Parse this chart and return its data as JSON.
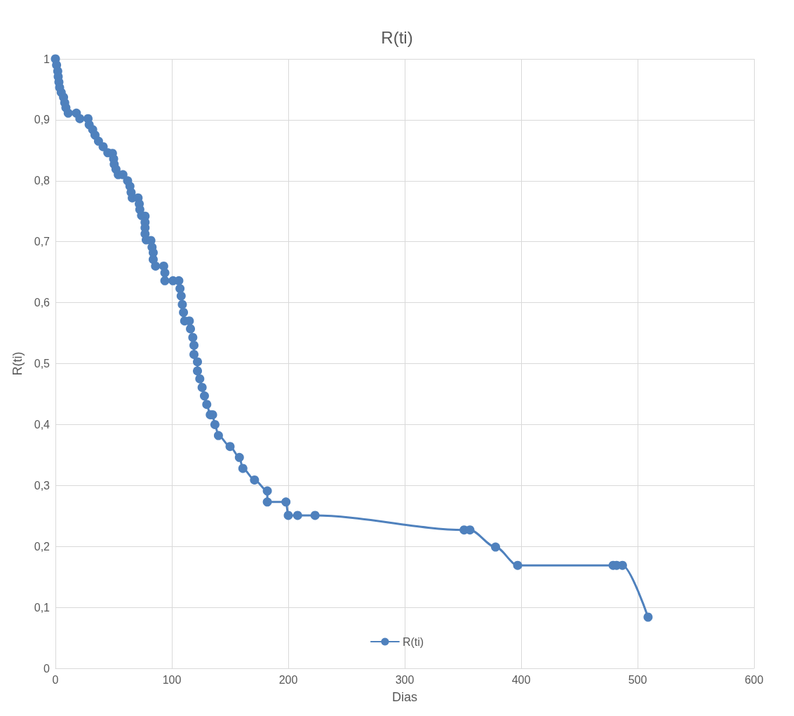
{
  "chart_data": {
    "type": "line",
    "title": "R(ti)",
    "xlabel": "Dias",
    "ylabel": "R(ti)",
    "x": [
      0,
      1,
      2,
      2.4,
      3,
      3.6,
      5,
      7,
      8,
      9,
      11,
      18,
      21,
      28,
      29,
      32,
      34,
      37,
      41,
      45,
      49,
      50,
      50.5,
      52,
      54,
      58,
      62,
      64,
      65,
      66,
      71,
      72,
      72.5,
      74,
      77,
      77,
      77,
      77,
      78,
      82,
      83,
      84,
      84,
      86,
      93,
      94,
      94,
      101,
      106,
      107,
      108,
      109,
      110,
      111,
      115,
      116,
      118,
      119,
      119,
      122,
      122,
      124,
      126,
      128,
      130,
      133,
      135,
      137,
      140,
      150,
      158,
      161,
      171,
      182,
      182,
      198,
      200,
      208,
      223,
      351,
      356,
      378,
      397,
      479,
      482,
      487,
      509
    ],
    "series": [
      {
        "name": "R(ti)",
        "color": "#4f81bd",
        "values": [
          1,
          0.99,
          0.98,
          0.971,
          0.962,
          0.953,
          0.945,
          0.937,
          0.928,
          0.92,
          0.911,
          0.911,
          0.902,
          0.902,
          0.892,
          0.884,
          0.875,
          0.865,
          0.856,
          0.846,
          0.845,
          0.836,
          0.827,
          0.819,
          0.81,
          0.81,
          0.8,
          0.791,
          0.781,
          0.772,
          0.772,
          0.762,
          0.753,
          0.743,
          0.742,
          0.732,
          0.723,
          0.713,
          0.703,
          0.702,
          0.691,
          0.682,
          0.671,
          0.66,
          0.66,
          0.649,
          0.636,
          0.636,
          0.636,
          0.623,
          0.611,
          0.597,
          0.584,
          0.57,
          0.57,
          0.557,
          0.543,
          0.53,
          0.515,
          0.503,
          0.488,
          0.475,
          0.461,
          0.447,
          0.433,
          0.416,
          0.416,
          0.4,
          0.382,
          0.364,
          0.346,
          0.328,
          0.309,
          0.291,
          0.273,
          0.273,
          0.251,
          0.251,
          0.251,
          0.227,
          0.227,
          0.199,
          0.169,
          0.169,
          0.169,
          0.169,
          0.084
        ]
      }
    ],
    "xlim": [
      0,
      600
    ],
    "xticks": [
      0,
      100,
      200,
      300,
      400,
      500,
      600
    ],
    "ylim": [
      0,
      1
    ],
    "yticks": [
      0,
      {
        "value": 0.1,
        "label": "0,1"
      },
      {
        "value": 0.2,
        "label": "0,2"
      },
      {
        "value": 0.3,
        "label": "0,3"
      },
      {
        "value": 0.4,
        "label": "0,4"
      },
      {
        "value": 0.5,
        "label": "0,5"
      },
      {
        "value": 0.6,
        "label": "0,6"
      },
      {
        "value": 0.7,
        "label": "0,7"
      },
      {
        "value": 0.8,
        "label": "0,8"
      },
      {
        "value": 0.9,
        "label": "0,9"
      },
      1
    ],
    "grid": true,
    "legend": "bottom",
    "marker": "circle",
    "line_style": "solid"
  }
}
